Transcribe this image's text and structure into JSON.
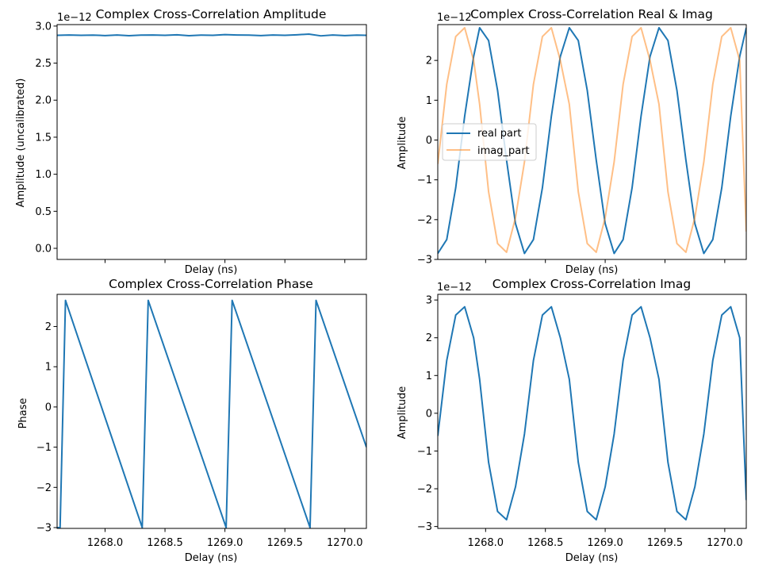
{
  "chart_data": [
    {
      "type": "line",
      "title": "Complex Cross-Correlation Amplitude",
      "xlabel": "Delay (ns)",
      "ylabel": "Amplitude (uncalibrated)",
      "offset_text": "1e−12",
      "xlim": [
        1267.6,
        1270.18
      ],
      "ylim": [
        -0.15,
        3.02
      ],
      "show_x_tick_labels": false,
      "x_ticks": [
        1268.0,
        1268.5,
        1269.0,
        1269.5,
        1270.0
      ],
      "y_ticks": [
        0.0,
        0.5,
        1.0,
        1.5,
        2.0,
        2.5,
        3.0
      ],
      "y_tick_labels": [
        "0.0",
        "0.5",
        "1.0",
        "1.5",
        "2.0",
        "2.5",
        "3.0"
      ],
      "grid": false,
      "series": [
        {
          "color": "#1f77b4",
          "x": [
            1267.6,
            1267.7,
            1267.8,
            1267.9,
            1268.0,
            1268.1,
            1268.2,
            1268.3,
            1268.4,
            1268.5,
            1268.6,
            1268.7,
            1268.8,
            1268.9,
            1269.0,
            1269.1,
            1269.2,
            1269.3,
            1269.4,
            1269.5,
            1269.6,
            1269.7,
            1269.8,
            1269.9,
            1270.0,
            1270.1,
            1270.18
          ],
          "y": [
            2.875,
            2.88,
            2.875,
            2.878,
            2.872,
            2.88,
            2.87,
            2.878,
            2.88,
            2.875,
            2.882,
            2.87,
            2.878,
            2.875,
            2.885,
            2.88,
            2.878,
            2.872,
            2.88,
            2.875,
            2.882,
            2.892,
            2.868,
            2.88,
            2.872,
            2.878,
            2.875
          ]
        }
      ]
    },
    {
      "type": "line",
      "title": "Complex Cross-Correlation Real & Imag",
      "xlabel": "Delay (ns)",
      "ylabel": "Amplitude",
      "offset_text": "1e−12",
      "xlim": [
        1267.6,
        1270.18
      ],
      "ylim": [
        -3.0,
        2.9
      ],
      "show_x_tick_labels": false,
      "x_ticks": [
        1268.0,
        1268.5,
        1269.0,
        1269.5,
        1270.0
      ],
      "y_ticks": [
        -3,
        -2,
        -1,
        0,
        1,
        2
      ],
      "y_tick_labels": [
        "−3",
        "−2",
        "−1",
        "0",
        "1",
        "2"
      ],
      "grid": false,
      "legend_position": "center-left",
      "series": [
        {
          "name": "real part",
          "color": "#1f77b4",
          "opacity": 1.0,
          "x": [
            1267.6,
            1267.675,
            1267.75,
            1267.825,
            1267.9,
            1267.95,
            1268.025,
            1268.1,
            1268.175,
            1268.25,
            1268.325,
            1268.4,
            1268.475,
            1268.55,
            1268.625,
            1268.7,
            1268.775,
            1268.85,
            1268.925,
            1269.0,
            1269.075,
            1269.15,
            1269.225,
            1269.3,
            1269.375,
            1269.45,
            1269.525,
            1269.6,
            1269.675,
            1269.75,
            1269.825,
            1269.9,
            1269.975,
            1270.05,
            1270.125,
            1270.18
          ],
          "y": [
            -2.85,
            -2.5,
            -1.2,
            0.6,
            2.1,
            2.82,
            2.5,
            1.25,
            -0.5,
            -2.1,
            -2.85,
            -2.5,
            -1.2,
            0.6,
            2.1,
            2.82,
            2.5,
            1.25,
            -0.5,
            -2.1,
            -2.85,
            -2.5,
            -1.2,
            0.6,
            2.1,
            2.82,
            2.5,
            1.25,
            -0.5,
            -2.1,
            -2.85,
            -2.5,
            -1.2,
            0.6,
            2.1,
            2.82
          ]
        },
        {
          "name": "imag_part",
          "color": "#ff7f0e",
          "opacity": 0.5,
          "x": [
            1267.6,
            1267.675,
            1267.75,
            1267.825,
            1267.9,
            1267.95,
            1268.025,
            1268.1,
            1268.175,
            1268.25,
            1268.325,
            1268.4,
            1268.475,
            1268.55,
            1268.625,
            1268.7,
            1268.775,
            1268.85,
            1268.925,
            1269.0,
            1269.075,
            1269.15,
            1269.225,
            1269.3,
            1269.375,
            1269.45,
            1269.525,
            1269.6,
            1269.675,
            1269.75,
            1269.825,
            1269.9,
            1269.975,
            1270.05,
            1270.125,
            1270.18
          ],
          "y": [
            -0.6,
            1.4,
            2.6,
            2.82,
            2.0,
            0.9,
            -1.3,
            -2.6,
            -2.82,
            -1.95,
            -0.55,
            1.4,
            2.6,
            2.82,
            2.0,
            0.9,
            -1.3,
            -2.6,
            -2.82,
            -1.95,
            -0.55,
            1.4,
            2.6,
            2.82,
            2.0,
            0.9,
            -1.3,
            -2.6,
            -2.82,
            -1.95,
            -0.55,
            1.4,
            2.6,
            2.82,
            2.0,
            -2.3
          ]
        }
      ]
    },
    {
      "type": "line",
      "title": "Complex Cross-Correlation Phase",
      "xlabel": "Delay (ns)",
      "ylabel": "Phase",
      "xlim": [
        1267.6,
        1270.18
      ],
      "ylim": [
        -3.02,
        2.8
      ],
      "x_ticks": [
        1268.0,
        1268.5,
        1269.0,
        1269.5,
        1270.0
      ],
      "x_tick_labels": [
        "1268.0",
        "1268.5",
        "1269.0",
        "1269.5",
        "1270.0"
      ],
      "y_ticks": [
        -3,
        -2,
        -1,
        0,
        1,
        2
      ],
      "y_tick_labels": [
        "−3",
        "−2",
        "−1",
        "0",
        "1",
        "2"
      ],
      "grid": false,
      "series": [
        {
          "color": "#1f77b4",
          "x": [
            1267.6,
            1267.625,
            1267.67,
            1268.31,
            1268.36,
            1269.01,
            1269.06,
            1269.71,
            1269.76,
            1270.18
          ],
          "y": [
            -3.0,
            -3.0,
            2.65,
            -3.0,
            2.65,
            -3.0,
            2.65,
            -3.0,
            2.65,
            -1.0
          ]
        }
      ]
    },
    {
      "type": "line",
      "title": "Complex Cross-Correlation Imag",
      "xlabel": "Delay (ns)",
      "ylabel": "Amplitude",
      "offset_text": "1e−12",
      "xlim": [
        1267.6,
        1270.18
      ],
      "ylim": [
        -3.05,
        3.15
      ],
      "x_ticks": [
        1268.0,
        1268.5,
        1269.0,
        1269.5,
        1270.0
      ],
      "x_tick_labels": [
        "1268.0",
        "1268.5",
        "1269.0",
        "1269.5",
        "1270.0"
      ],
      "y_ticks": [
        -3,
        -2,
        -1,
        0,
        1,
        2,
        3
      ],
      "y_tick_labels": [
        "−3",
        "−2",
        "−1",
        "0",
        "1",
        "2",
        "3"
      ],
      "grid": false,
      "series": [
        {
          "color": "#1f77b4",
          "x": [
            1267.6,
            1267.675,
            1267.75,
            1267.825,
            1267.9,
            1267.95,
            1268.025,
            1268.1,
            1268.175,
            1268.25,
            1268.325,
            1268.4,
            1268.475,
            1268.55,
            1268.625,
            1268.7,
            1268.775,
            1268.85,
            1268.925,
            1269.0,
            1269.075,
            1269.15,
            1269.225,
            1269.3,
            1269.375,
            1269.45,
            1269.525,
            1269.6,
            1269.675,
            1269.75,
            1269.825,
            1269.9,
            1269.975,
            1270.05,
            1270.125,
            1270.18
          ],
          "y": [
            -0.6,
            1.4,
            2.6,
            2.82,
            2.0,
            0.9,
            -1.3,
            -2.6,
            -2.82,
            -1.95,
            -0.55,
            1.4,
            2.6,
            2.82,
            2.0,
            0.9,
            -1.3,
            -2.6,
            -2.82,
            -1.95,
            -0.55,
            1.4,
            2.6,
            2.82,
            2.0,
            0.9,
            -1.3,
            -2.6,
            -2.82,
            -1.95,
            -0.55,
            1.4,
            2.6,
            2.82,
            2.0,
            -2.3
          ]
        }
      ]
    }
  ]
}
